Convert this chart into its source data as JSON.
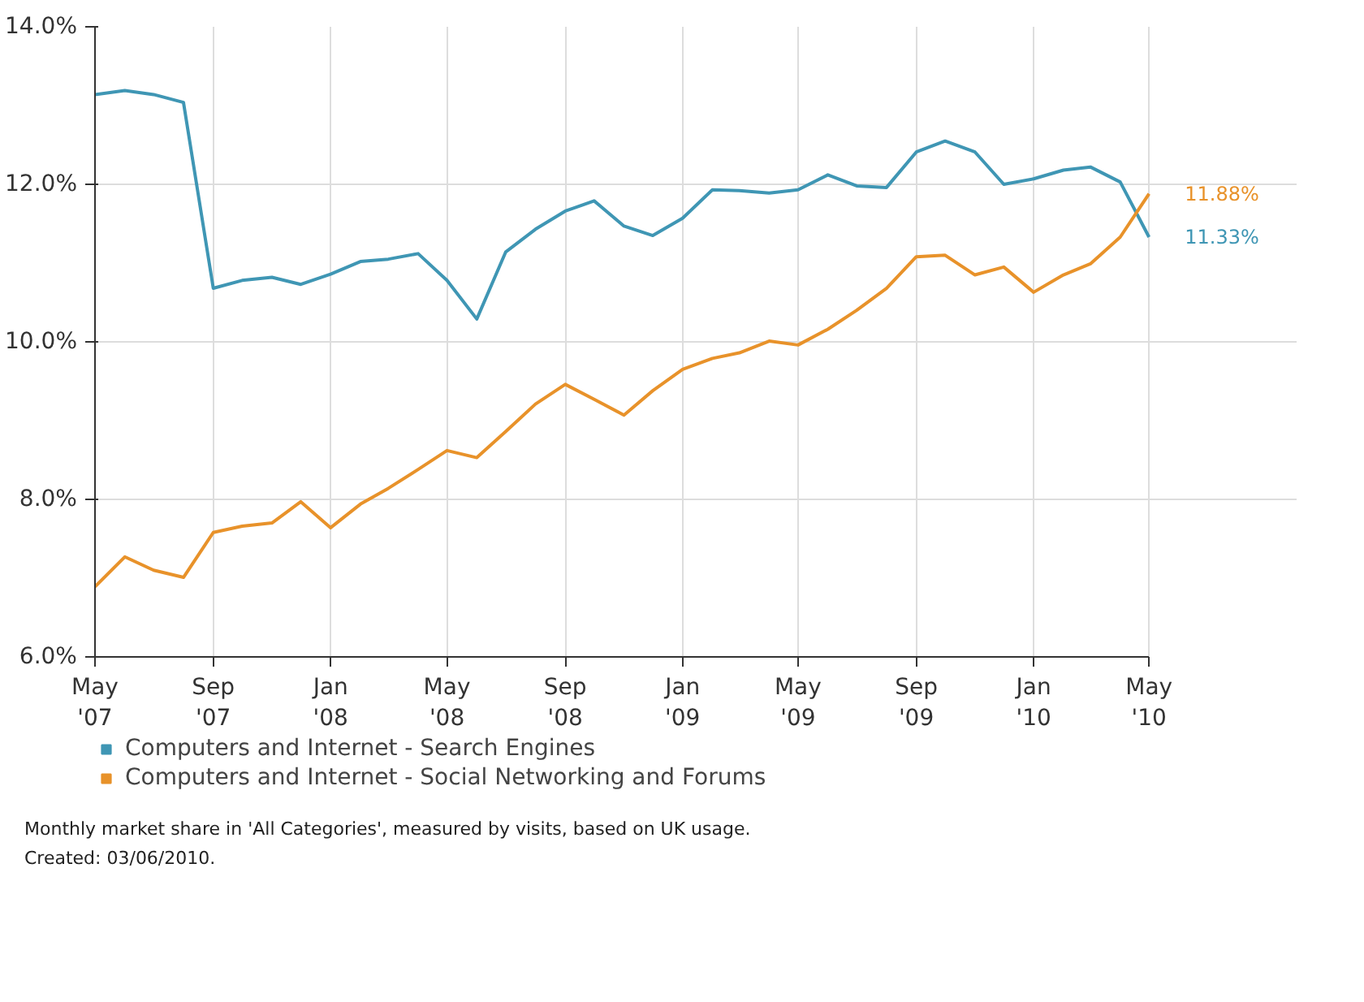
{
  "chart_data": {
    "type": "line",
    "x": [
      "2007-05",
      "2007-06",
      "2007-07",
      "2007-08",
      "2007-09",
      "2007-10",
      "2007-11",
      "2007-12",
      "2008-01",
      "2008-02",
      "2008-03",
      "2008-04",
      "2008-05",
      "2008-06",
      "2008-07",
      "2008-08",
      "2008-09",
      "2008-10",
      "2008-11",
      "2008-12",
      "2009-01",
      "2009-02",
      "2009-03",
      "2009-04",
      "2009-05",
      "2009-06",
      "2009-07",
      "2009-08",
      "2009-09",
      "2009-10",
      "2009-11",
      "2009-12",
      "2010-01",
      "2010-02",
      "2010-03",
      "2010-04",
      "2010-05"
    ],
    "series": [
      {
        "name": "Computers and Internet - Search Engines",
        "color": "#3f96b4",
        "values": [
          13.14,
          13.19,
          13.14,
          13.04,
          10.68,
          10.78,
          10.82,
          10.73,
          10.86,
          11.02,
          11.05,
          11.12,
          10.78,
          10.29,
          11.14,
          11.43,
          11.66,
          11.79,
          11.47,
          11.35,
          11.57,
          11.93,
          11.92,
          11.89,
          11.93,
          12.12,
          11.98,
          11.96,
          12.41,
          12.55,
          12.41,
          12.0,
          12.07,
          12.18,
          12.22,
          12.03,
          11.33
        ]
      },
      {
        "name": "Computers and Internet - Social Networking and Forums",
        "color": "#e8922a",
        "values": [
          6.89,
          7.27,
          7.1,
          7.01,
          7.58,
          7.66,
          7.7,
          7.97,
          7.64,
          7.94,
          8.14,
          8.38,
          8.62,
          8.53,
          8.86,
          9.21,
          9.46,
          9.27,
          9.07,
          9.38,
          9.65,
          9.79,
          9.86,
          10.01,
          9.96,
          10.16,
          10.4,
          10.68,
          11.08,
          11.1,
          10.85,
          10.95,
          10.63,
          10.85,
          10.99,
          11.33,
          11.88
        ]
      }
    ],
    "xlim": [
      "2007-05",
      "2010-05"
    ],
    "xticks": [
      {
        "value": "2007-05",
        "label": "May\n'07"
      },
      {
        "value": "2007-09",
        "label": "Sep\n'07"
      },
      {
        "value": "2008-01",
        "label": "Jan\n'08"
      },
      {
        "value": "2008-05",
        "label": "May\n'08"
      },
      {
        "value": "2008-09",
        "label": "Sep\n'08"
      },
      {
        "value": "2009-01",
        "label": "Jan\n'09"
      },
      {
        "value": "2009-05",
        "label": "May\n'09"
      },
      {
        "value": "2009-09",
        "label": "Sep\n'09"
      },
      {
        "value": "2010-01",
        "label": "Jan\n'10"
      },
      {
        "value": "2010-05",
        "label": "May\n'10"
      }
    ],
    "ylim": [
      6,
      14
    ],
    "yticks": [
      {
        "value": 6,
        "label": "6.0%"
      },
      {
        "value": 8,
        "label": "8.0%"
      },
      {
        "value": 10,
        "label": "10.0%"
      },
      {
        "value": 12,
        "label": "12.0%"
      },
      {
        "value": 14,
        "label": "14.0%"
      }
    ],
    "grid": true,
    "legend": "bottom",
    "annotations": [
      {
        "text": "11.88%",
        "x": "2010-05",
        "y": 11.88
      },
      {
        "text": "11.33%",
        "x": "2010-05",
        "y": 11.33
      },
      "Monthly market share in 'All Categories', measured by visits, based on UK usage.",
      "Created: 03/06/2010."
    ]
  }
}
